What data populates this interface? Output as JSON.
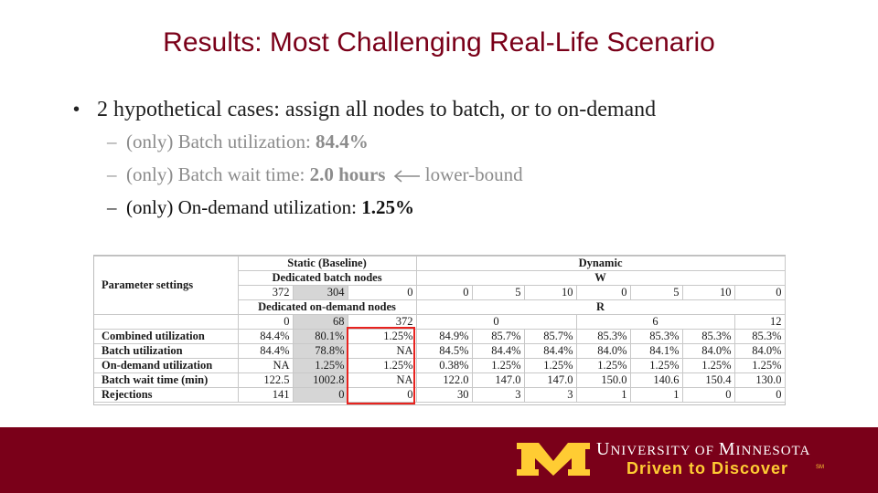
{
  "title": "Results: Most Challenging Real-Life Scenario",
  "bullet_main": {
    "symbol": "•",
    "text": "2 hypothetical cases: assign all nodes to batch, or to on-demand"
  },
  "sub_bullets": [
    {
      "dash": "–",
      "prefix": "(only) Batch utilization: ",
      "value": "84.4%",
      "suffix": ""
    },
    {
      "dash": "–",
      "prefix": "(only) Batch wait time: ",
      "value": "2.0 hours",
      "suffix": "lower-bound"
    },
    {
      "dash": "–",
      "prefix": "(only) On-demand utilization: ",
      "value": "1.25%",
      "suffix": ""
    }
  ],
  "table": {
    "group_static": "Static (Baseline)",
    "group_dynamic": "Dynamic",
    "dedicated_batch_nodes": "Dedicated batch nodes",
    "w_label": "W",
    "param_settings": "Parameter settings",
    "dedicated_ondemand_nodes": "Dedicated on-demand nodes",
    "r_label": "R",
    "static_batch_nodes": [
      "372",
      "304",
      "0"
    ],
    "w_values": [
      "0",
      "5",
      "10",
      "0",
      "5",
      "10",
      "0"
    ],
    "static_ondemand_nodes": [
      "0",
      "68",
      "372"
    ],
    "r_values": [
      "0",
      "6",
      "12"
    ],
    "rows": [
      {
        "label": "Combined utilization",
        "values": [
          "84.4%",
          "80.1%",
          "1.25%",
          "84.9%",
          "85.7%",
          "85.7%",
          "85.3%",
          "85.3%",
          "85.3%",
          "85.3%"
        ]
      },
      {
        "label": "Batch utilization",
        "values": [
          "84.4%",
          "78.8%",
          "NA",
          "84.5%",
          "84.4%",
          "84.4%",
          "84.0%",
          "84.1%",
          "84.0%",
          "84.0%"
        ]
      },
      {
        "label": "On-demand utilization",
        "values": [
          "NA",
          "1.25%",
          "1.25%",
          "0.38%",
          "1.25%",
          "1.25%",
          "1.25%",
          "1.25%",
          "1.25%",
          "1.25%"
        ]
      },
      {
        "label": "Batch wait time (min)",
        "values": [
          "122.5",
          "1002.8",
          "NA",
          "122.0",
          "147.0",
          "147.0",
          "150.0",
          "140.6",
          "150.4",
          "130.0"
        ]
      },
      {
        "label": "Rejections",
        "values": [
          "141",
          "0",
          "0",
          "30",
          "3",
          "3",
          "1",
          "1",
          "0",
          "0"
        ]
      }
    ]
  },
  "footer": {
    "university_parts": [
      "U",
      "NIVERSITY OF ",
      "M",
      "INNESOTA"
    ],
    "tagline": "Driven to Discover",
    "mark": "SM",
    "colors": {
      "maroon": "#7a0019",
      "gold": "#ffcc33"
    }
  },
  "colors": {
    "title": "#7a0019",
    "highlight_box": "#e8231f",
    "shaded_column": "#d6d6d6"
  }
}
